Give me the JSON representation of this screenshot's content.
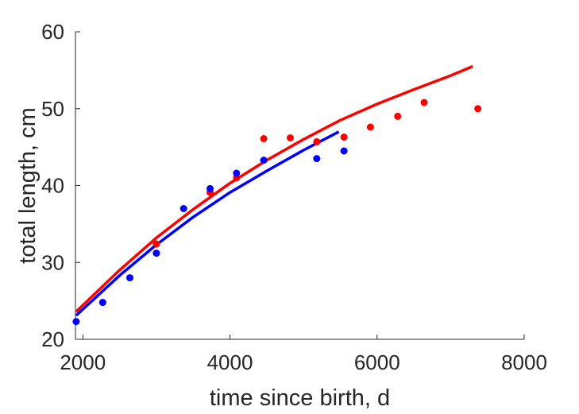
{
  "chart_data": {
    "type": "scatter",
    "xlabel": "time since birth, d",
    "ylabel": "total length, cm",
    "xlim": [
      1900,
      8000
    ],
    "ylim": [
      20,
      60
    ],
    "xticks": [
      2000,
      4000,
      6000,
      8000
    ],
    "yticks": [
      20,
      30,
      40,
      50,
      60
    ],
    "xtick_labels": [
      "2000",
      "4000",
      "6000",
      "8000"
    ],
    "ytick_labels": [
      "20",
      "30",
      "40",
      "50",
      "60"
    ],
    "grid": false,
    "legend": false,
    "box": "open (left and bottom axes only)",
    "series": [
      {
        "color": "#ff0000",
        "kind": "points",
        "x": [
          3000,
          3730,
          4090,
          4460,
          4820,
          5180,
          5550,
          5910,
          6280,
          6640,
          7370
        ],
        "y": [
          32.4,
          39.1,
          41.0,
          46.1,
          46.2,
          45.7,
          46.3,
          47.6,
          49.0,
          50.8,
          50.0
        ]
      },
      {
        "color": "#0000ff",
        "kind": "points",
        "x": [
          1910,
          2270,
          2640,
          3000,
          3370,
          3730,
          4090,
          4460,
          5180,
          5550
        ],
        "y": [
          22.3,
          24.8,
          28.0,
          31.2,
          37.0,
          39.6,
          41.6,
          43.3,
          43.5,
          44.5
        ]
      },
      {
        "color": "#ff0000",
        "kind": "curve",
        "x": [
          1910,
          2500,
          3000,
          3500,
          4000,
          4500,
          5000,
          5500,
          6000,
          6500,
          7000,
          7300
        ],
        "y": [
          23.6,
          29.0,
          33.2,
          36.9,
          40.3,
          43.3,
          46.0,
          48.5,
          50.6,
          52.5,
          54.3,
          55.5
        ]
      },
      {
        "color": "#0000ff",
        "kind": "curve",
        "x": [
          1910,
          2500,
          3000,
          3500,
          4000,
          4500,
          5000,
          5480
        ],
        "y": [
          23.1,
          28.3,
          32.3,
          35.9,
          39.1,
          41.9,
          44.6,
          47.0
        ]
      }
    ]
  }
}
